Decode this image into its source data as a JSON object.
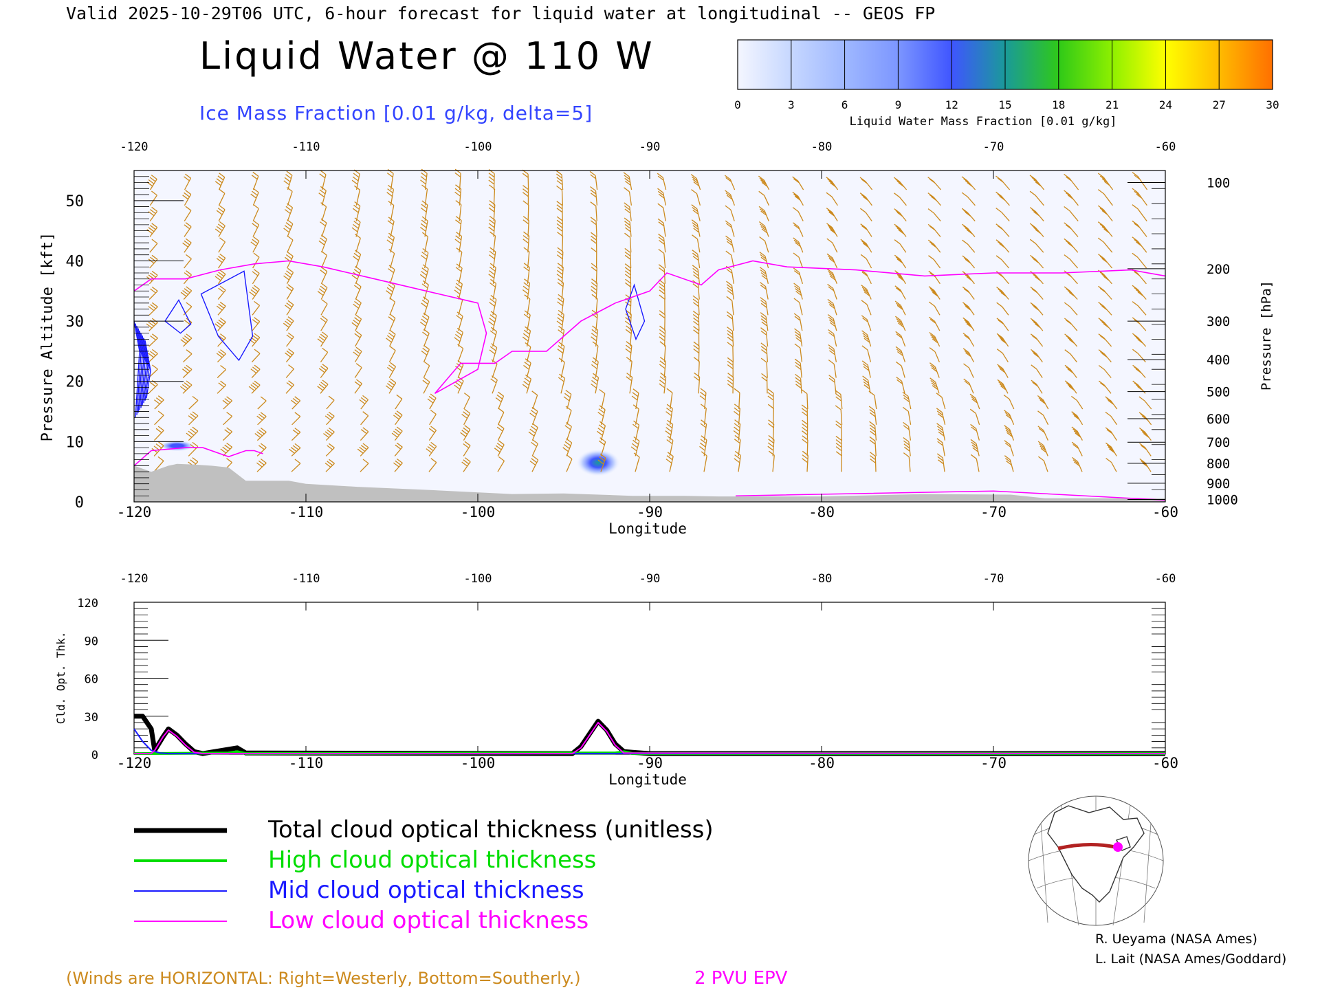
{
  "header": {
    "valid_line": "Valid 2025-10-29T06 UTC, 6-hour forecast for liquid water at longitudinal -- GEOS FP",
    "title": "Liquid Water @ 110 W",
    "subtitle": "Ice Mass Fraction [0.01 g/kg, delta=5]"
  },
  "colorbar": {
    "ticks": [
      "0",
      "3",
      "6",
      "9",
      "12",
      "15",
      "18",
      "21",
      "24",
      "27",
      "30"
    ],
    "label": "Liquid Water Mass Fraction [0.01 g/kg]",
    "colors": [
      "#f4f6ff",
      "#c6d7ff",
      "#9fb8ff",
      "#7c96ff",
      "#3f55ff",
      "#1a9a99",
      "#2fc918",
      "#8ef000",
      "#ffff00",
      "#ffbb00",
      "#ff6f00"
    ]
  },
  "chart_data": [
    {
      "type": "heatmap",
      "title": "Liquid Water @ 110 W",
      "xlabel": "Longitude",
      "ylabel": "Pressure Altitude [kft]",
      "y2label": "Pressure [hPa]",
      "xlim": [
        -120,
        -60
      ],
      "ylim": [
        0,
        55
      ],
      "x_ticks": [
        "-120",
        "-110",
        "-100",
        "-90",
        "-80",
        "-70",
        "-60"
      ],
      "y_ticks": [
        "0",
        "10",
        "20",
        "30",
        "40",
        "50"
      ],
      "pressure_ticks": [
        {
          "label": "100",
          "kft": 53
        },
        {
          "label": "200",
          "kft": 38.7
        },
        {
          "label": "300",
          "kft": 30
        },
        {
          "label": "400",
          "kft": 23.6
        },
        {
          "label": "500",
          "kft": 18.3
        },
        {
          "label": "600",
          "kft": 13.8
        },
        {
          "label": "700",
          "kft": 9.9
        },
        {
          "label": "800",
          "kft": 6.4
        },
        {
          "label": "900",
          "kft": 3.1
        },
        {
          "label": "1000",
          "kft": 0.4
        }
      ],
      "liquid_water_max": [
        {
          "lon": -93,
          "kft": 6.5,
          "value": 15
        },
        {
          "lon": -117.5,
          "kft": 9.3,
          "value": 6
        }
      ],
      "epv_2pvu_line": [
        [
          -120,
          35
        ],
        [
          -119,
          37
        ],
        [
          -117,
          37
        ],
        [
          -115,
          38.5
        ],
        [
          -113,
          39.5
        ],
        [
          -111,
          40
        ],
        [
          -109,
          39
        ],
        [
          -106,
          37
        ],
        [
          -103,
          35
        ],
        [
          -100,
          33
        ],
        [
          -99.5,
          28
        ],
        [
          -100,
          22
        ],
        [
          -102.5,
          18
        ],
        [
          -101,
          23
        ],
        [
          -99,
          23
        ],
        [
          -98,
          25
        ],
        [
          -96,
          25
        ],
        [
          -94,
          30
        ],
        [
          -92,
          33
        ],
        [
          -90,
          35
        ],
        [
          -89,
          38
        ],
        [
          -87,
          36
        ],
        [
          -86,
          38.5
        ],
        [
          -84,
          40
        ],
        [
          -82,
          39
        ],
        [
          -78,
          38.5
        ],
        [
          -74,
          37.5
        ],
        [
          -70,
          38
        ],
        [
          -66,
          38
        ],
        [
          -62,
          38.5
        ],
        [
          -60,
          37.5
        ]
      ],
      "terrain": [
        [
          -120,
          6
        ],
        [
          -119,
          5
        ],
        [
          -118,
          6
        ],
        [
          -117.5,
          6.3
        ],
        [
          -116.5,
          6.2
        ],
        [
          -115.5,
          6
        ],
        [
          -114.5,
          5.7
        ],
        [
          -113.5,
          3.5
        ],
        [
          -111,
          3.5
        ],
        [
          -110,
          3
        ],
        [
          -107,
          2.5
        ],
        [
          -103,
          2
        ],
        [
          -98,
          1.3
        ],
        [
          -95,
          1.4
        ],
        [
          -91,
          1
        ],
        [
          -88,
          1
        ],
        [
          -86,
          0.9
        ],
        [
          -80,
          0.9
        ],
        [
          -74,
          1.3
        ],
        [
          -69,
          1.2
        ],
        [
          -67,
          0.6
        ],
        [
          -60,
          0.6
        ]
      ]
    },
    {
      "type": "line",
      "xlabel": "Longitude",
      "ylabel": "Cld. Opt. Thk.",
      "xlim": [
        -120,
        -60
      ],
      "ylim": [
        0,
        120
      ],
      "x_ticks": [
        "-120",
        "-110",
        "-100",
        "-90",
        "-80",
        "-70",
        "-60"
      ],
      "y_ticks": [
        "0",
        "30",
        "60",
        "90",
        "120"
      ],
      "series": [
        {
          "name": "Total cloud optical thickness (unitless)",
          "color": "#000000",
          "points": [
            [
              -120,
              30
            ],
            [
              -119.5,
              30
            ],
            [
              -119,
              20
            ],
            [
              -118.8,
              3
            ],
            [
              -118.3,
              14
            ],
            [
              -118,
              20
            ],
            [
              -117.5,
              15
            ],
            [
              -117,
              8
            ],
            [
              -116.5,
              2
            ],
            [
              -116,
              0.5
            ],
            [
              -114,
              5
            ],
            [
              -113.5,
              1
            ],
            [
              -94.5,
              0.5
            ],
            [
              -94,
              6
            ],
            [
              -93.5,
              16
            ],
            [
              -93,
              26
            ],
            [
              -92.5,
              19
            ],
            [
              -92,
              8
            ],
            [
              -91.5,
              2
            ],
            [
              -91,
              1.5
            ],
            [
              -90,
              0.5
            ],
            [
              -60,
              0.5
            ]
          ]
        },
        {
          "name": "High cloud optical thickness",
          "color": "#00dd00",
          "points": [
            [
              -120,
              0.5
            ],
            [
              -114.5,
              1
            ],
            [
              -114,
              2
            ],
            [
              -113.5,
              0.5
            ],
            [
              -92,
              1
            ],
            [
              -91.5,
              2
            ],
            [
              -91,
              0.5
            ],
            [
              -60,
              0.5
            ]
          ]
        },
        {
          "name": "Mid cloud optical thickness",
          "color": "#1a1aff",
          "points": [
            [
              -120,
              20
            ],
            [
              -119.5,
              10
            ],
            [
              -119,
              3
            ],
            [
              -118.5,
              1
            ],
            [
              -118,
              0.5
            ],
            [
              -60,
              0.5
            ]
          ]
        },
        {
          "name": "Low cloud optical thickness",
          "color": "#ff00ff",
          "points": [
            [
              -120,
              0.5
            ],
            [
              -119,
              0.5
            ],
            [
              -118.8,
              3
            ],
            [
              -118.3,
              14
            ],
            [
              -118,
              19
            ],
            [
              -117.5,
              14
            ],
            [
              -117,
              7
            ],
            [
              -116.5,
              1.5
            ],
            [
              -116,
              0.5
            ],
            [
              -94.5,
              0.5
            ],
            [
              -94,
              5
            ],
            [
              -93.5,
              15
            ],
            [
              -93,
              25
            ],
            [
              -92.5,
              18
            ],
            [
              -92,
              7
            ],
            [
              -91.5,
              1
            ],
            [
              -60,
              0.5
            ]
          ]
        }
      ]
    }
  ],
  "legend": [
    {
      "label": "Total cloud optical thickness (unitless)",
      "color": "#000000"
    },
    {
      "label": "High cloud optical thickness",
      "color": "#00dd00"
    },
    {
      "label": "Mid cloud optical thickness",
      "color": "#1a1aff"
    },
    {
      "label": "Low cloud optical thickness",
      "color": "#ff00ff"
    }
  ],
  "footer": {
    "winds_note": "(Winds are HORIZONTAL: Right=Westerly, Bottom=Southerly.)",
    "epv_label": "2 PVU EPV",
    "credit1": "R. Ueyama (NASA Ames)",
    "credit2": "L. Lait (NASA Ames/Goddard)"
  },
  "colors": {
    "winds": "#cc8a1e",
    "epv": "#ff00ff",
    "ice": "#1a1aff",
    "terrain": "#c0c0c0",
    "subtitle": "#3344ff"
  }
}
